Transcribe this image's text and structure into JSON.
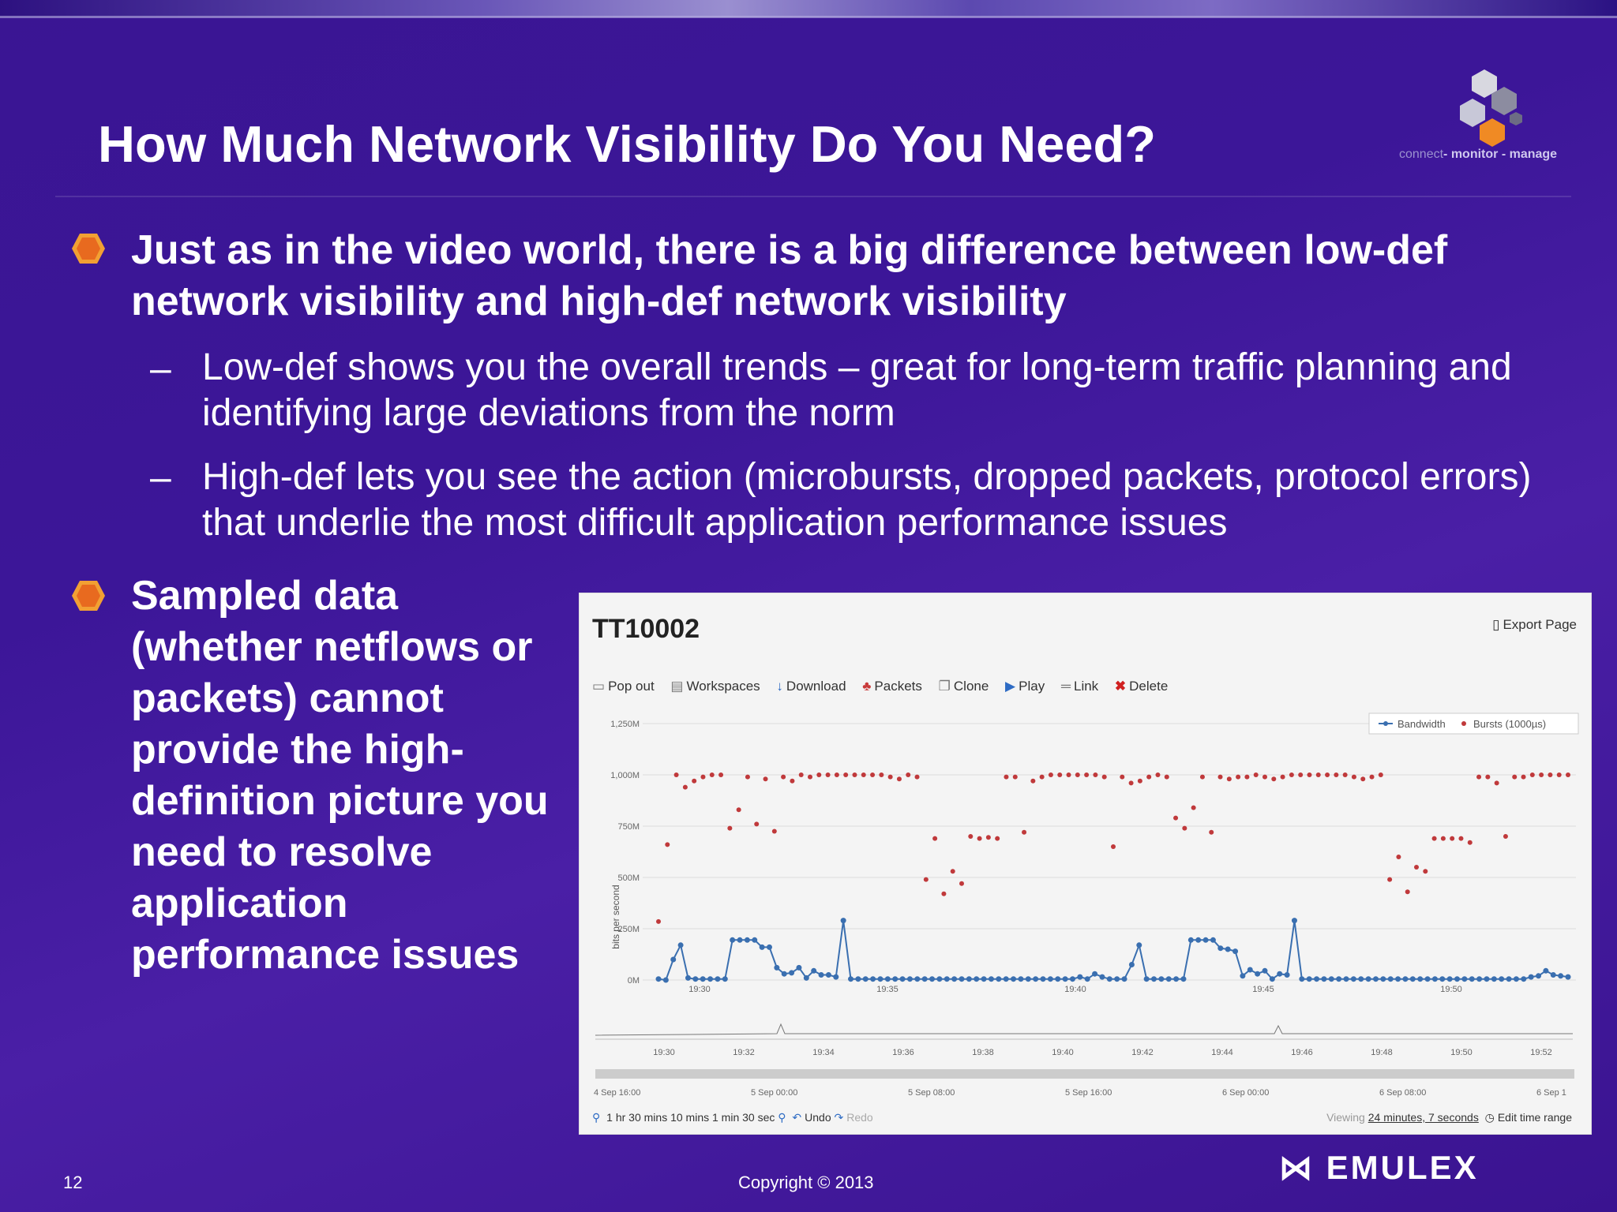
{
  "slide": {
    "title": "How Much Network Visibility Do You Need?",
    "tagline_a": "connect",
    "tagline_b": "- monitor - manage",
    "bullet1": "Just as in the video world, there is a big difference between low-def network visibility and high-def network visibility",
    "sub1": "Low-def shows you the overall trends – great for long-term traffic planning and identifying large deviations from the norm",
    "sub2": "High-def lets you see the action (microbursts, dropped packets, protocol errors) that underlie the most difficult application performance issues",
    "dash": "–",
    "bullet2": "Sampled data (whether netflows or packets) cannot provide the high-definition picture you need to resolve application performance issues",
    "page_number": "12",
    "copyright": "Copyright © 2013",
    "brand": "EMULEX"
  },
  "panel": {
    "title": "TT10002",
    "export": "Export Page",
    "toolbar": [
      "Pop out",
      "Workspaces",
      "Download",
      "Packets",
      "Clone",
      "Play",
      "Link",
      "Delete"
    ],
    "footer_left": "1 hr  30 mins  10 mins  1 min  30 sec",
    "undo": "Undo",
    "redo": "Redo",
    "viewing_prefix": "Viewing",
    "viewing_value": "24 minutes, 7 seconds",
    "edit_range": "Edit time range",
    "timeline_ticks": [
      "19:30",
      "19:32",
      "19:34",
      "19:36",
      "19:38",
      "19:40",
      "19:42",
      "19:44",
      "19:46",
      "19:48",
      "19:50",
      "19:52"
    ],
    "date_ticks": [
      "4 Sep 16:00",
      "5 Sep 00:00",
      "5 Sep 08:00",
      "5 Sep 16:00",
      "6 Sep 00:00",
      "6 Sep 08:00",
      "6 Sep 1"
    ]
  },
  "chart_data": {
    "type": "line",
    "ylabel": "bits per second",
    "ylim": [
      0,
      1250
    ],
    "yticks": [
      "0M",
      "250M",
      "500M",
      "750M",
      "1,000M",
      "1,250M"
    ],
    "xticks": [
      "19:30",
      "19:35",
      "19:40",
      "19:45",
      "19:50"
    ],
    "legend_placement": "top-right",
    "colors": {
      "Bandwidth": "#3a6fb0",
      "Bursts": "#c0393b"
    },
    "series": [
      {
        "name": "Bandwidth",
        "values": [
          5,
          0,
          100,
          170,
          10,
          5,
          5,
          5,
          5,
          5,
          195,
          195,
          195,
          195,
          160,
          160,
          60,
          30,
          35,
          60,
          10,
          45,
          25,
          25,
          15,
          290,
          5,
          5,
          5,
          5,
          5,
          5,
          5,
          5,
          5,
          5,
          5,
          5,
          5,
          5,
          5,
          5,
          5,
          5,
          5,
          5,
          5,
          5,
          5,
          5,
          5,
          5,
          5,
          5,
          5,
          5,
          5,
          15,
          5,
          30,
          15,
          5,
          5,
          5,
          75,
          170,
          5,
          5,
          5,
          5,
          5,
          5,
          195,
          195,
          195,
          195,
          155,
          150,
          140,
          20,
          50,
          30,
          45,
          5,
          30,
          25,
          290,
          5,
          5,
          5,
          5,
          5,
          5,
          5,
          5,
          5,
          5,
          5,
          5,
          5,
          5,
          5,
          5,
          5,
          5,
          5,
          5,
          5,
          5,
          5,
          5,
          5,
          5,
          5,
          5,
          5,
          5,
          5,
          15,
          20,
          45,
          25,
          20,
          15
        ]
      },
      {
        "name": "Bursts",
        "values": [
          285,
          660,
          1000,
          940,
          970,
          990,
          1000,
          1000,
          740,
          830,
          990,
          760,
          980,
          725,
          990,
          970,
          1000,
          990,
          1000,
          1000,
          1000,
          1000,
          1000,
          1000,
          1000,
          1000,
          990,
          980,
          1000,
          990,
          490,
          690,
          420,
          530,
          470,
          700,
          690,
          695,
          690,
          990,
          990,
          720,
          970,
          990,
          1000,
          1000,
          1000,
          1000,
          1000,
          1000,
          990,
          650,
          990,
          960,
          970,
          990,
          1000,
          990,
          790,
          740,
          840,
          990,
          720,
          990,
          980,
          990,
          990,
          1000,
          990,
          980,
          990,
          1000,
          1000,
          1000,
          1000,
          1000,
          1000,
          1000,
          990,
          980,
          990,
          1000,
          490,
          600,
          430,
          550,
          530,
          690,
          690,
          690,
          690,
          670,
          990,
          990,
          960,
          700,
          990,
          990,
          1000,
          1000,
          1000,
          1000,
          1000
        ]
      }
    ]
  }
}
